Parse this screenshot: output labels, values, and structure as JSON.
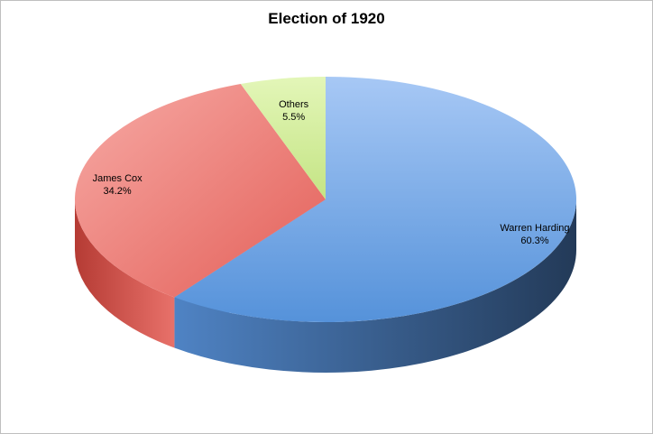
{
  "chart_data": {
    "type": "pie",
    "title": "Election of 1920",
    "slices": [
      {
        "label": "Warren Harding",
        "value": 60.3,
        "value_label": "60.3%",
        "color": "#7ea7de"
      },
      {
        "label": "James Cox",
        "value": 34.2,
        "value_label": "34.2%",
        "color": "#ea716d"
      },
      {
        "label": "Others",
        "value": 5.5,
        "value_label": "5.5%",
        "color": "#d4ec9b"
      }
    ],
    "style": "3d",
    "legend": "none"
  }
}
